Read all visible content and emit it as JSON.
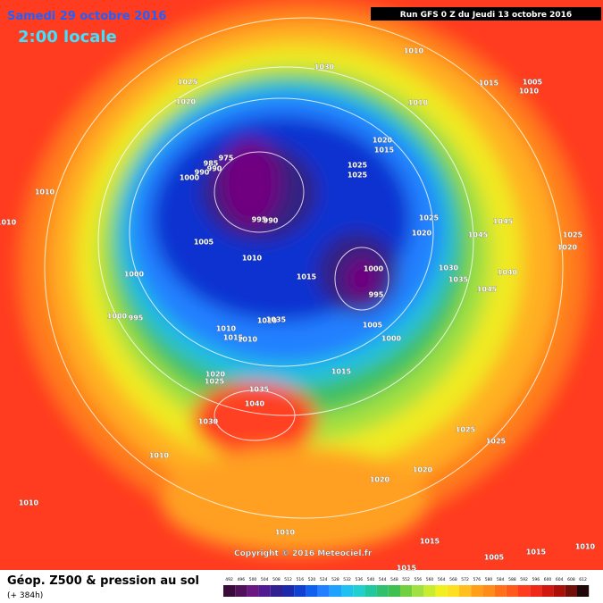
{
  "header": {
    "date": "Samedi 29 octobre 2016",
    "time": "2:00 locale",
    "run": "Run GFS 0 Z du Jeudi 13 octobre 2016"
  },
  "isobars": [
    1010,
    1030,
    1025,
    1020,
    1015,
    1005,
    1010,
    1010,
    1020,
    1015,
    975,
    985,
    990,
    990,
    1000,
    1025,
    1025,
    1010,
    1010,
    995,
    990,
    1025,
    1020,
    1045,
    1045,
    1020,
    1025,
    1005,
    1010,
    1015,
    1000,
    1000,
    1030,
    1035,
    1040,
    1045,
    995,
    1000,
    995,
    1010,
    1035,
    1005,
    1010,
    1015,
    1010,
    1000,
    1015,
    1020,
    1025,
    1035,
    1040,
    1030,
    1025,
    1025,
    1010,
    1020,
    1020,
    1010,
    1010,
    1015,
    1005,
    1015,
    1010,
    1015
  ],
  "copyright": "Copyright © 2016 Meteociel.fr",
  "footer": {
    "title": "Géop. Z500 & pression au sol",
    "lead": "(+ 384h)"
  },
  "scale": {
    "labels": [
      492,
      496,
      500,
      504,
      508,
      512,
      516,
      520,
      524,
      528,
      532,
      536,
      540,
      544,
      548,
      552,
      556,
      560,
      564,
      568,
      572,
      576,
      580,
      584,
      588,
      592,
      596,
      600,
      604,
      608,
      612
    ],
    "colors": [
      "#3a0a3a",
      "#50105a",
      "#6a1880",
      "#501a90",
      "#302090",
      "#1a2aa8",
      "#1040d0",
      "#1060f0",
      "#2080ff",
      "#20a0ff",
      "#20c0f0",
      "#20d0d0",
      "#20c8a0",
      "#30c070",
      "#40c050",
      "#70d040",
      "#a0e040",
      "#c8ec30",
      "#f0f020",
      "#ffe020",
      "#ffc020",
      "#ffa018",
      "#ff8c1a",
      "#ff7018",
      "#ff5a1c",
      "#ff3b20",
      "#f02818",
      "#d01810",
      "#a81008",
      "#701008",
      "#200808"
    ]
  }
}
